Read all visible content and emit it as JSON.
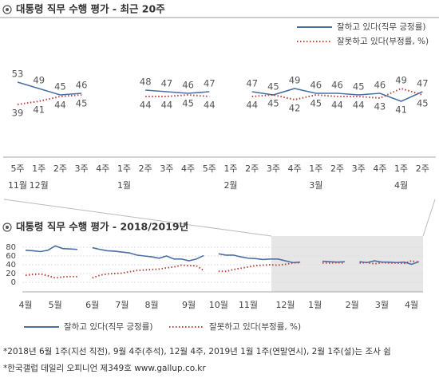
{
  "chart_data": [
    {
      "type": "line",
      "title": "대통령 직무 수행 평가 - 최근 20주",
      "legend": "upper right",
      "show_values": true,
      "categories": [
        "5주",
        "1주",
        "2주",
        "3주",
        "4주",
        "1주",
        "2주",
        "3주",
        "4주",
        "5주",
        "1주",
        "2주",
        "3주",
        "4주",
        "1주",
        "2주",
        "3주",
        "4주",
        "1주",
        "2주"
      ],
      "groups": [
        "11월",
        "12월",
        null,
        null,
        null,
        "1월",
        null,
        null,
        null,
        null,
        "2월",
        null,
        null,
        null,
        "3월",
        null,
        null,
        null,
        "4월",
        null
      ],
      "ylim": [
        10,
        70
      ],
      "series": [
        {
          "name": "잘하고 있다(직무 긍정률)",
          "color": "#4a6fa5",
          "style": "solid",
          "values": [
            53,
            49,
            45,
            46,
            null,
            null,
            48,
            47,
            46,
            47,
            null,
            47,
            45,
            49,
            46,
            46,
            45,
            46,
            41,
            47
          ]
        },
        {
          "name": "잘못하고 있다(부정률, %)",
          "color": "#b5473e",
          "style": "dotted",
          "values": [
            39,
            41,
            44,
            45,
            null,
            null,
            44,
            44,
            45,
            44,
            null,
            44,
            45,
            42,
            45,
            44,
            44,
            43,
            49,
            45
          ]
        }
      ]
    },
    {
      "type": "line",
      "title": "대통령 직무 수행 평가 - 2018/2019년",
      "legend": "bottom",
      "show_values": false,
      "grid": true,
      "categories": [
        "4월",
        null,
        null,
        null,
        "5월",
        null,
        null,
        null,
        null,
        "6월",
        null,
        null,
        null,
        "7월",
        null,
        null,
        null,
        "8월",
        null,
        null,
        null,
        null,
        "9월",
        null,
        null,
        null,
        "10월",
        null,
        null,
        null,
        "11월",
        null,
        null,
        null,
        null,
        "12월",
        null,
        null,
        null,
        "1월",
        null,
        null,
        null,
        null,
        "2월",
        null,
        null,
        null,
        "3월",
        null,
        null,
        null,
        "4월",
        null
      ],
      "ylim": [
        0,
        80
      ],
      "yticks": [
        0,
        20,
        40,
        60,
        80
      ],
      "series": [
        {
          "name": "잘하고 있다(직무 긍정률)",
          "color": "#4a6fa5",
          "style": "solid",
          "values": [
            73,
            72,
            70,
            73,
            83,
            77,
            76,
            75,
            null,
            79,
            75,
            72,
            71,
            69,
            67,
            62,
            60,
            58,
            55,
            60,
            53,
            53,
            49,
            53,
            61,
            null,
            65,
            62,
            62,
            58,
            55,
            54,
            52,
            53,
            53,
            49,
            45,
            46,
            null,
            null,
            48,
            47,
            46,
            47,
            null,
            47,
            45,
            49,
            46,
            46,
            45,
            46,
            41,
            47
          ]
        },
        {
          "name": "잘못하고 있다(부정률, %)",
          "color": "#b5473e",
          "style": "dotted",
          "values": [
            16,
            18,
            19,
            15,
            10,
            12,
            13,
            13,
            null,
            10,
            16,
            19,
            20,
            21,
            24,
            27,
            28,
            29,
            30,
            33,
            35,
            39,
            38,
            38,
            27,
            null,
            25,
            25,
            29,
            32,
            35,
            38,
            39,
            40,
            39,
            41,
            44,
            45,
            null,
            null,
            44,
            44,
            45,
            44,
            null,
            44,
            45,
            42,
            45,
            44,
            44,
            43,
            49,
            45
          ]
        }
      ]
    }
  ],
  "footnotes": [
    "*2018년 6월 1주(지선 직전), 9월 4주(추석), 12월 4주, 2019년 1월 1주(연말연시), 2월 1주(설)는 조사 쉼",
    "*한국갤럽 데일리 오피니언 제349호 www.gallup.co.kr"
  ]
}
